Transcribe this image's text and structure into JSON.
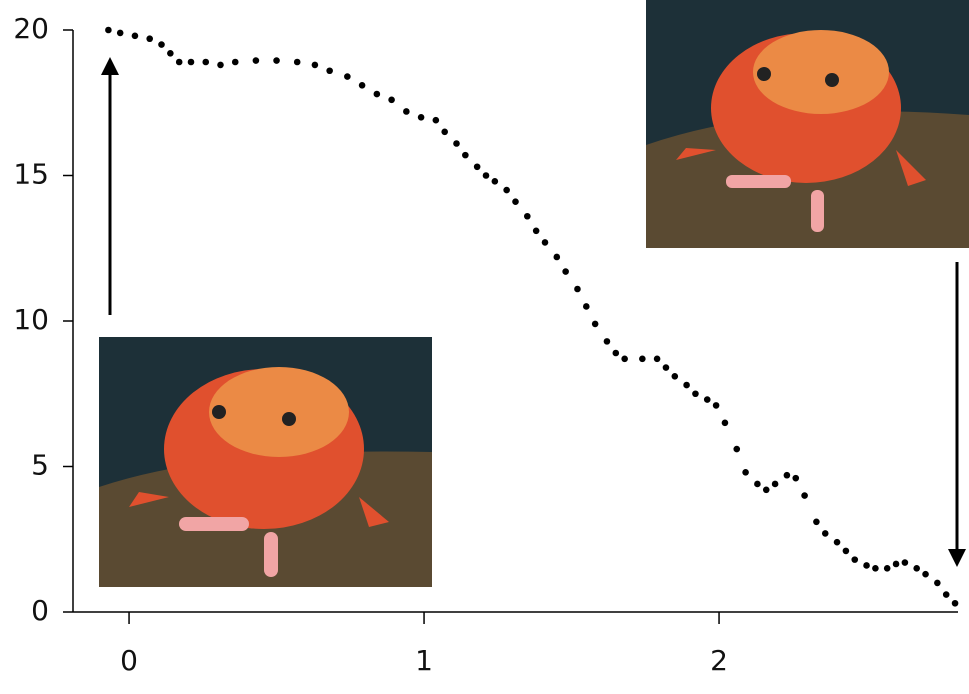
{
  "chart_data": {
    "type": "scatter",
    "x": [
      -0.07,
      -0.03,
      0.02,
      0.07,
      0.11,
      0.14,
      0.17,
      0.21,
      0.26,
      0.31,
      0.36,
      0.43,
      0.5,
      0.57,
      0.63,
      0.68,
      0.74,
      0.79,
      0.84,
      0.89,
      0.94,
      0.99,
      1.04,
      1.07,
      1.11,
      1.14,
      1.18,
      1.21,
      1.24,
      1.28,
      1.31,
      1.35,
      1.38,
      1.41,
      1.45,
      1.48,
      1.52,
      1.55,
      1.58,
      1.62,
      1.65,
      1.68,
      1.74,
      1.79,
      1.82,
      1.85,
      1.89,
      1.92,
      1.96,
      1.99,
      2.02,
      2.06,
      2.09,
      2.13,
      2.16,
      2.19,
      2.23,
      2.26,
      2.29,
      2.33,
      2.36,
      2.4,
      2.43,
      2.46,
      2.5,
      2.53,
      2.57,
      2.6,
      2.63,
      2.67,
      2.7,
      2.74,
      2.77,
      2.8
    ],
    "values": [
      20.0,
      19.9,
      19.8,
      19.7,
      19.5,
      19.2,
      18.9,
      18.9,
      18.9,
      18.8,
      18.9,
      18.95,
      18.95,
      18.9,
      18.8,
      18.6,
      18.4,
      18.1,
      17.8,
      17.6,
      17.2,
      17.0,
      16.9,
      16.5,
      16.1,
      15.7,
      15.3,
      15.0,
      14.8,
      14.5,
      14.1,
      13.6,
      13.1,
      12.7,
      12.2,
      11.7,
      11.1,
      10.5,
      9.9,
      9.3,
      8.9,
      8.7,
      8.7,
      8.7,
      8.4,
      8.1,
      7.8,
      7.5,
      7.3,
      7.1,
      6.5,
      5.6,
      4.8,
      4.4,
      4.2,
      4.4,
      4.7,
      4.6,
      4.0,
      3.1,
      2.7,
      2.4,
      2.1,
      1.8,
      1.6,
      1.5,
      1.5,
      1.65,
      1.7,
      1.5,
      1.3,
      1.0,
      0.6,
      0.3
    ],
    "color": "#000000",
    "xlim": [
      -0.19,
      2.81
    ],
    "xticks": [
      0,
      1,
      2
    ],
    "ylim": [
      0,
      20
    ],
    "yticks": [
      0,
      5,
      10,
      15,
      20
    ]
  }
}
